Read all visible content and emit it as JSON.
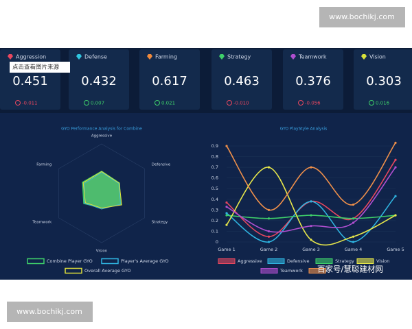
{
  "watermarks": {
    "top": "www.bochikj.com",
    "bottom": "www.bochikj.com",
    "overlay": "百家号/慧聪建材网"
  },
  "tooltip": "点击查看图片来源",
  "cards": [
    {
      "title": "Aggression",
      "value": "0.451",
      "delta": "-0.011",
      "color": "#e8475f"
    },
    {
      "title": "Defense",
      "value": "0.432",
      "delta": "0.007",
      "color": "#2fc6e0"
    },
    {
      "title": "Farming",
      "value": "0.617",
      "delta": "0.021",
      "color": "#f08a3c"
    },
    {
      "title": "Strategy",
      "value": "0.463",
      "delta": "-0.010",
      "color": "#3ecf6a"
    },
    {
      "title": "Teamwork",
      "value": "0.376",
      "delta": "-0.056",
      "color": "#b04fd0"
    },
    {
      "title": "Vision",
      "value": "0.303",
      "delta": "0.016",
      "color": "#d7e23a"
    }
  ],
  "chart_data": [
    {
      "type": "radar",
      "title": "GYO Performance Analysis for Combine",
      "categories": [
        "Aggressive",
        "Defensive",
        "Strategy",
        "Vision",
        "Teamwork",
        "Farming"
      ],
      "rlim": [
        0,
        1
      ],
      "series": [
        {
          "name": "Combine Player GYO",
          "color": "#3ecf6a",
          "values": [
            0.45,
            0.42,
            0.45,
            0.3,
            0.42,
            0.45
          ]
        },
        {
          "name": "Player's Average GYO",
          "color": "#2fb4e0",
          "values": [
            0.42,
            0.4,
            0.44,
            0.32,
            0.4,
            0.4
          ]
        },
        {
          "name": "Overall Average GYO",
          "color": "#e0e03a",
          "values": [
            0.44,
            0.41,
            0.47,
            0.3,
            0.38,
            0.43
          ]
        }
      ]
    },
    {
      "type": "line",
      "title": "GYO PlayStyle Analysis",
      "categories": [
        "Game 1",
        "Game 2",
        "Game 3",
        "Game 4",
        "Game 5"
      ],
      "ylim": [
        0,
        0.9
      ],
      "yticks": [
        0,
        0.1,
        0.2,
        0.3,
        0.4,
        0.5,
        0.6,
        0.7,
        0.8,
        0.9
      ],
      "series": [
        {
          "name": "Aggressive",
          "color": "#e8475f",
          "values": [
            0.37,
            0.05,
            0.38,
            0.22,
            0.77
          ]
        },
        {
          "name": "Defensive",
          "color": "#2fb4e0",
          "values": [
            0.27,
            0.0,
            0.38,
            0.0,
            0.43
          ]
        },
        {
          "name": "Strategy",
          "color": "#3ecf6a",
          "values": [
            0.25,
            0.22,
            0.25,
            0.22,
            0.25
          ]
        },
        {
          "name": "Vision",
          "color": "#e8e84a",
          "values": [
            0.16,
            0.7,
            0.02,
            0.05,
            0.25
          ]
        },
        {
          "name": "Teamwork",
          "color": "#b04fd0",
          "values": [
            0.33,
            0.1,
            0.15,
            0.18,
            0.7
          ]
        },
        {
          "color": "#f0904a",
          "values": [
            0.9,
            0.3,
            0.7,
            0.35,
            0.93
          ]
        }
      ]
    }
  ]
}
